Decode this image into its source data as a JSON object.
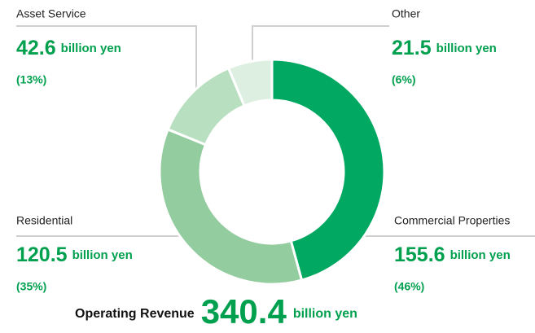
{
  "chart_data": {
    "type": "donut",
    "categories": [
      "Commercial Properties",
      "Residential",
      "Asset Service",
      "Other"
    ],
    "values": [
      155.6,
      120.5,
      42.6,
      21.5
    ],
    "share_labels": [
      "(46%)",
      "(35%)",
      "(13%)",
      "(6%)"
    ],
    "colors": [
      "#00a862",
      "#93cc9f",
      "#b9dfc1",
      "#dcefe1"
    ],
    "unit": "billion yen",
    "total_label": "Operating Revenue",
    "total": 340.4
  }
}
